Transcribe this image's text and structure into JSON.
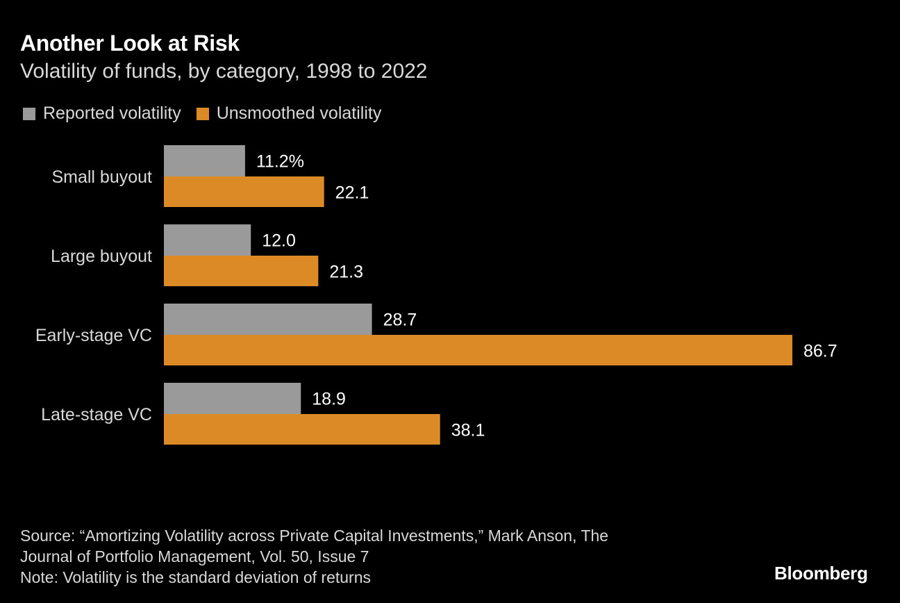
{
  "chart_data": {
    "type": "bar",
    "orientation": "horizontal",
    "title": "Another Look at Risk",
    "subtitle": "Volatility of funds, by category, 1998 to 2022",
    "categories": [
      "Small buyout",
      "Large buyout",
      "Early-stage VC",
      "Late-stage VC"
    ],
    "series": [
      {
        "name": "Reported volatility",
        "color": "#9a9a9a",
        "values": [
          11.2,
          12.0,
          28.7,
          18.9
        ],
        "labels": [
          "11.2%",
          "12.0",
          "28.7",
          "18.9"
        ]
      },
      {
        "name": "Unsmoothed volatility",
        "color": "#dc8a26",
        "values": [
          22.1,
          21.3,
          86.7,
          38.1
        ],
        "labels": [
          "22.1",
          "21.3",
          "86.7",
          "38.1"
        ]
      }
    ],
    "xlim": [
      0,
      86.7
    ],
    "legend": "top-left",
    "grid": false
  },
  "footer": {
    "source_line1": "Source: “Amortizing Volatility across Private Capital Investments,” Mark Anson, The",
    "source_line2": "Journal of Portfolio Management, Vol. 50, Issue 7",
    "note": "Note: Volatility is the standard deviation of returns"
  },
  "brand": "Bloomberg"
}
